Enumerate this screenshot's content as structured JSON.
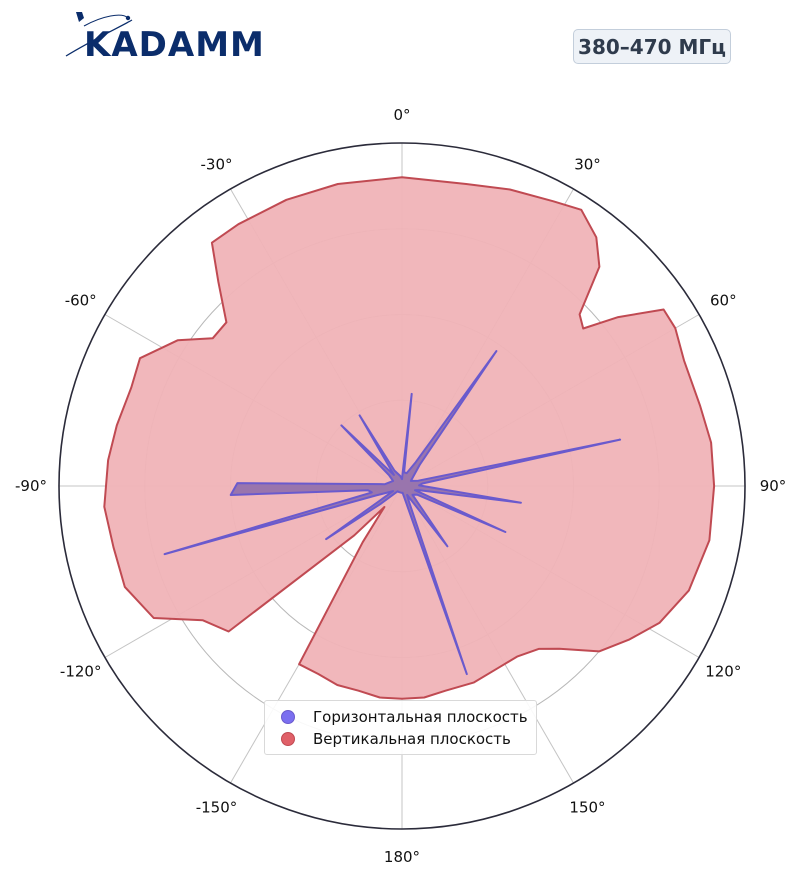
{
  "logo": {
    "text": "KADAMM",
    "color": "#0b2d6b"
  },
  "badge": {
    "text": "380–470 МГц"
  },
  "chart_data": {
    "type": "polar",
    "title": "",
    "angle_zero": "top",
    "angle_direction": "clockwise",
    "angle_ticks": [
      0,
      30,
      60,
      90,
      120,
      150,
      180,
      -150,
      -120,
      -90,
      -60,
      -30
    ],
    "angle_tick_labels": [
      "0°",
      "30°",
      "60°",
      "90°",
      "120°",
      "150°",
      "180°",
      "-150°",
      "-120°",
      "-90°",
      "-60°",
      "-30°"
    ],
    "radial_range": [
      0,
      1
    ],
    "radial_gridlines": [
      0.25,
      0.5,
      0.75
    ],
    "radial_tick_labels_visible": false,
    "grid": true,
    "legend_position": "bottom-center",
    "series": [
      {
        "name": "Горизонтальная плоскость",
        "color": "#6a5acd",
        "fill": "#8a6aaa",
        "points": [
          [
            -180,
            0.02
          ],
          [
            -150,
            0.02
          ],
          [
            -140,
            0.02
          ],
          [
            -130,
            0.08
          ],
          [
            -125,
            0.27
          ],
          [
            -120,
            0.03
          ],
          [
            -110,
            0.08
          ],
          [
            -106,
            0.72
          ],
          [
            -102,
            0.09
          ],
          [
            -97,
            0.1
          ],
          [
            -93,
            0.5
          ],
          [
            -89,
            0.48
          ],
          [
            -84,
            0.05
          ],
          [
            -60,
            0.03
          ],
          [
            -50,
            0.05
          ],
          [
            -45,
            0.25
          ],
          [
            -40,
            0.06
          ],
          [
            -36,
            0.04
          ],
          [
            -31,
            0.24
          ],
          [
            -26,
            0.05
          ],
          [
            -10,
            0.03
          ],
          [
            0,
            0.02
          ],
          [
            3,
            0.04
          ],
          [
            6,
            0.27
          ],
          [
            9,
            0.04
          ],
          [
            20,
            0.04
          ],
          [
            30,
            0.08
          ],
          [
            35,
            0.48
          ],
          [
            40,
            0.08
          ],
          [
            60,
            0.03
          ],
          [
            72,
            0.05
          ],
          [
            78,
            0.65
          ],
          [
            83,
            0.06
          ],
          [
            88,
            0.05
          ],
          [
            98,
            0.35
          ],
          [
            104,
            0.05
          ],
          [
            108,
            0.04
          ],
          [
            114,
            0.33
          ],
          [
            120,
            0.05
          ],
          [
            130,
            0.04
          ],
          [
            143,
            0.22
          ],
          [
            150,
            0.03
          ],
          [
            156,
            0.05
          ],
          [
            161,
            0.58
          ],
          [
            166,
            0.05
          ],
          [
            175,
            0.02
          ],
          [
            180,
            0.02
          ]
        ]
      },
      {
        "name": "Вертикальная плоскость",
        "color": "#c04a52",
        "fill": "#f0b3b7",
        "points": [
          [
            0,
            0.9
          ],
          [
            12,
            0.9
          ],
          [
            20,
            0.92
          ],
          [
            28,
            0.94
          ],
          [
            33,
            0.96
          ],
          [
            38,
            0.92
          ],
          [
            42,
            0.86
          ],
          [
            46,
            0.72
          ],
          [
            49,
            0.7
          ],
          [
            52,
            0.8
          ],
          [
            56,
            0.92
          ],
          [
            60,
            0.92
          ],
          [
            66,
            0.9
          ],
          [
            75,
            0.9
          ],
          [
            82,
            0.91
          ],
          [
            90,
            0.91
          ],
          [
            100,
            0.91
          ],
          [
            110,
            0.89
          ],
          [
            118,
            0.85
          ],
          [
            124,
            0.8
          ],
          [
            130,
            0.75
          ],
          [
            136,
            0.66
          ],
          [
            140,
            0.62
          ],
          [
            146,
            0.6
          ],
          [
            152,
            0.6
          ],
          [
            160,
            0.61
          ],
          [
            168,
            0.61
          ],
          [
            174,
            0.62
          ],
          [
            180,
            0.62
          ],
          [
            186,
            0.62
          ],
          [
            192,
            0.61
          ],
          [
            198,
            0.61
          ],
          [
            204,
            0.6
          ],
          [
            210,
            0.6
          ],
          [
            215,
            0.2
          ],
          [
            220,
            0.08
          ],
          [
            224,
            0.2
          ],
          [
            230,
            0.66
          ],
          [
            236,
            0.7
          ],
          [
            242,
            0.82
          ],
          [
            250,
            0.86
          ],
          [
            258,
            0.86
          ],
          [
            266,
            0.87
          ],
          [
            275,
            0.86
          ],
          [
            282,
            0.85
          ],
          [
            290,
            0.84
          ],
          [
            296,
            0.85
          ],
          [
            303,
            0.78
          ],
          [
            308,
            0.7
          ],
          [
            313,
            0.7
          ],
          [
            318,
            0.8
          ],
          [
            322,
            0.9
          ],
          [
            328,
            0.9
          ],
          [
            338,
            0.9
          ],
          [
            348,
            0.9
          ],
          [
            360,
            0.9
          ]
        ]
      }
    ]
  }
}
